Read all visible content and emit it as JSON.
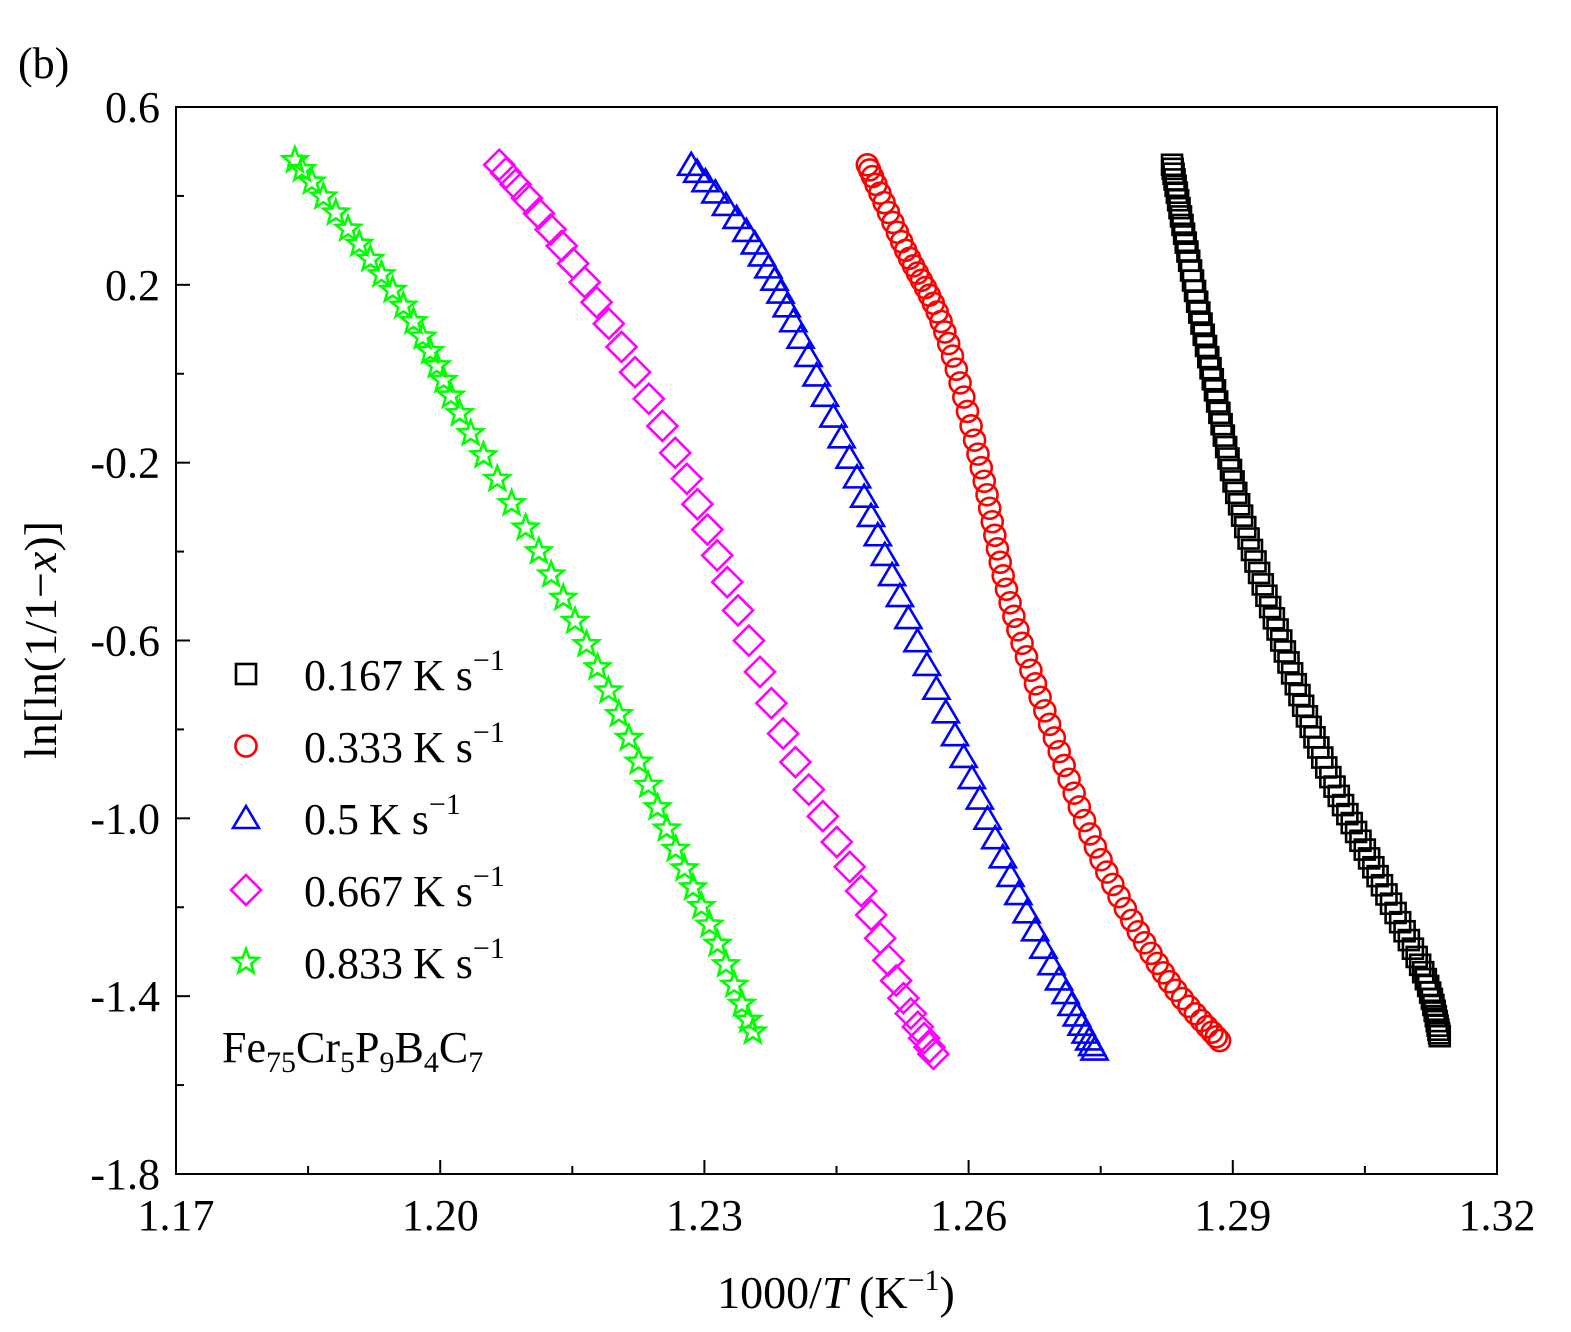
{
  "panel_label": "(b)",
  "chart_data": {
    "type": "scatter",
    "title": "",
    "xlabel": {
      "pre": "1000/",
      "var": "T",
      "post": " (K",
      "sup": "−1",
      "close": ")"
    },
    "ylabel": {
      "pre": "ln[ln(1/1−",
      "var": "x",
      "post": ")]"
    },
    "xlim": [
      1.17,
      1.32
    ],
    "ylim": [
      -1.8,
      0.6
    ],
    "xticks": [
      1.17,
      1.2,
      1.23,
      1.26,
      1.29,
      1.32
    ],
    "xtick_labels": [
      "1.17",
      "1.20",
      "1.23",
      "1.26",
      "1.29",
      "1.32"
    ],
    "yticks": [
      0.6,
      0.2,
      -0.2,
      -0.6,
      -1.0,
      -1.4,
      -1.8
    ],
    "ytick_labels": [
      "0.6",
      "0.2",
      "-0.2",
      "-0.6",
      "-1.0",
      "-1.4",
      "-1.8"
    ],
    "legend_position": "bottom-left",
    "annotation": "Fe75Cr5P9B4C7",
    "series": [
      {
        "name": "0.167 K s−1",
        "value": "0.167",
        "unit": "K s",
        "sup": "−1",
        "marker": "square",
        "color": "#000000",
        "count": 95,
        "points": [
          [
            1.2831,
            0.47
          ],
          [
            1.2848,
            0.28
          ],
          [
            1.2876,
            0.0
          ],
          [
            1.2908,
            -0.3
          ],
          [
            1.2955,
            -0.6
          ],
          [
            1.3005,
            -0.88
          ],
          [
            1.3062,
            -1.12
          ],
          [
            1.3117,
            -1.35
          ],
          [
            1.3135,
            -1.49
          ]
        ]
      },
      {
        "name": "0.333 K s−1",
        "value": "0.333",
        "unit": "K s",
        "sup": "−1",
        "marker": "circle",
        "color": "#ff0000",
        "count": 80,
        "points": [
          [
            1.2485,
            0.47
          ],
          [
            1.2528,
            0.28
          ],
          [
            1.2572,
            0.1
          ],
          [
            1.2613,
            -0.2
          ],
          [
            1.2645,
            -0.5
          ],
          [
            1.2694,
            -0.8
          ],
          [
            1.2752,
            -1.1
          ],
          [
            1.2822,
            -1.35
          ],
          [
            1.2885,
            -1.5
          ]
        ]
      },
      {
        "name": "0.5 K s−1",
        "value": "0.5",
        "unit": "K s",
        "sup": "−1",
        "marker": "triangle",
        "color": "#0000ff",
        "count": 55,
        "points": [
          [
            1.2285,
            0.47
          ],
          [
            1.2355,
            0.3
          ],
          [
            1.2405,
            0.1
          ],
          [
            1.2467,
            -0.2
          ],
          [
            1.2522,
            -0.5
          ],
          [
            1.2592,
            -0.85
          ],
          [
            1.2652,
            -1.15
          ],
          [
            1.2712,
            -1.4
          ],
          [
            1.2743,
            -1.52
          ]
        ]
      },
      {
        "name": "0.667 K s−1",
        "value": "0.667",
        "unit": "K s",
        "sup": "−1",
        "marker": "diamond",
        "color": "#ff00ff",
        "count": 42,
        "points": [
          [
            1.2067,
            0.47
          ],
          [
            1.2127,
            0.32
          ],
          [
            1.2195,
            0.1
          ],
          [
            1.2272,
            -0.2
          ],
          [
            1.2332,
            -0.5
          ],
          [
            1.2398,
            -0.85
          ],
          [
            1.2475,
            -1.15
          ],
          [
            1.2525,
            -1.4
          ],
          [
            1.256,
            -1.53
          ]
        ]
      },
      {
        "name": "0.833 K s−1",
        "value": "0.833",
        "unit": "K s",
        "sup": "−1",
        "marker": "star",
        "color": "#00ff00",
        "count": 47,
        "points": [
          [
            1.1835,
            0.48
          ],
          [
            1.1905,
            0.3
          ],
          [
            1.1975,
            0.1
          ],
          [
            1.2025,
            -0.1
          ],
          [
            1.2112,
            -0.4
          ],
          [
            1.2188,
            -0.7
          ],
          [
            1.2252,
            -1.0
          ],
          [
            1.2308,
            -1.25
          ],
          [
            1.2355,
            -1.48
          ]
        ]
      }
    ]
  }
}
